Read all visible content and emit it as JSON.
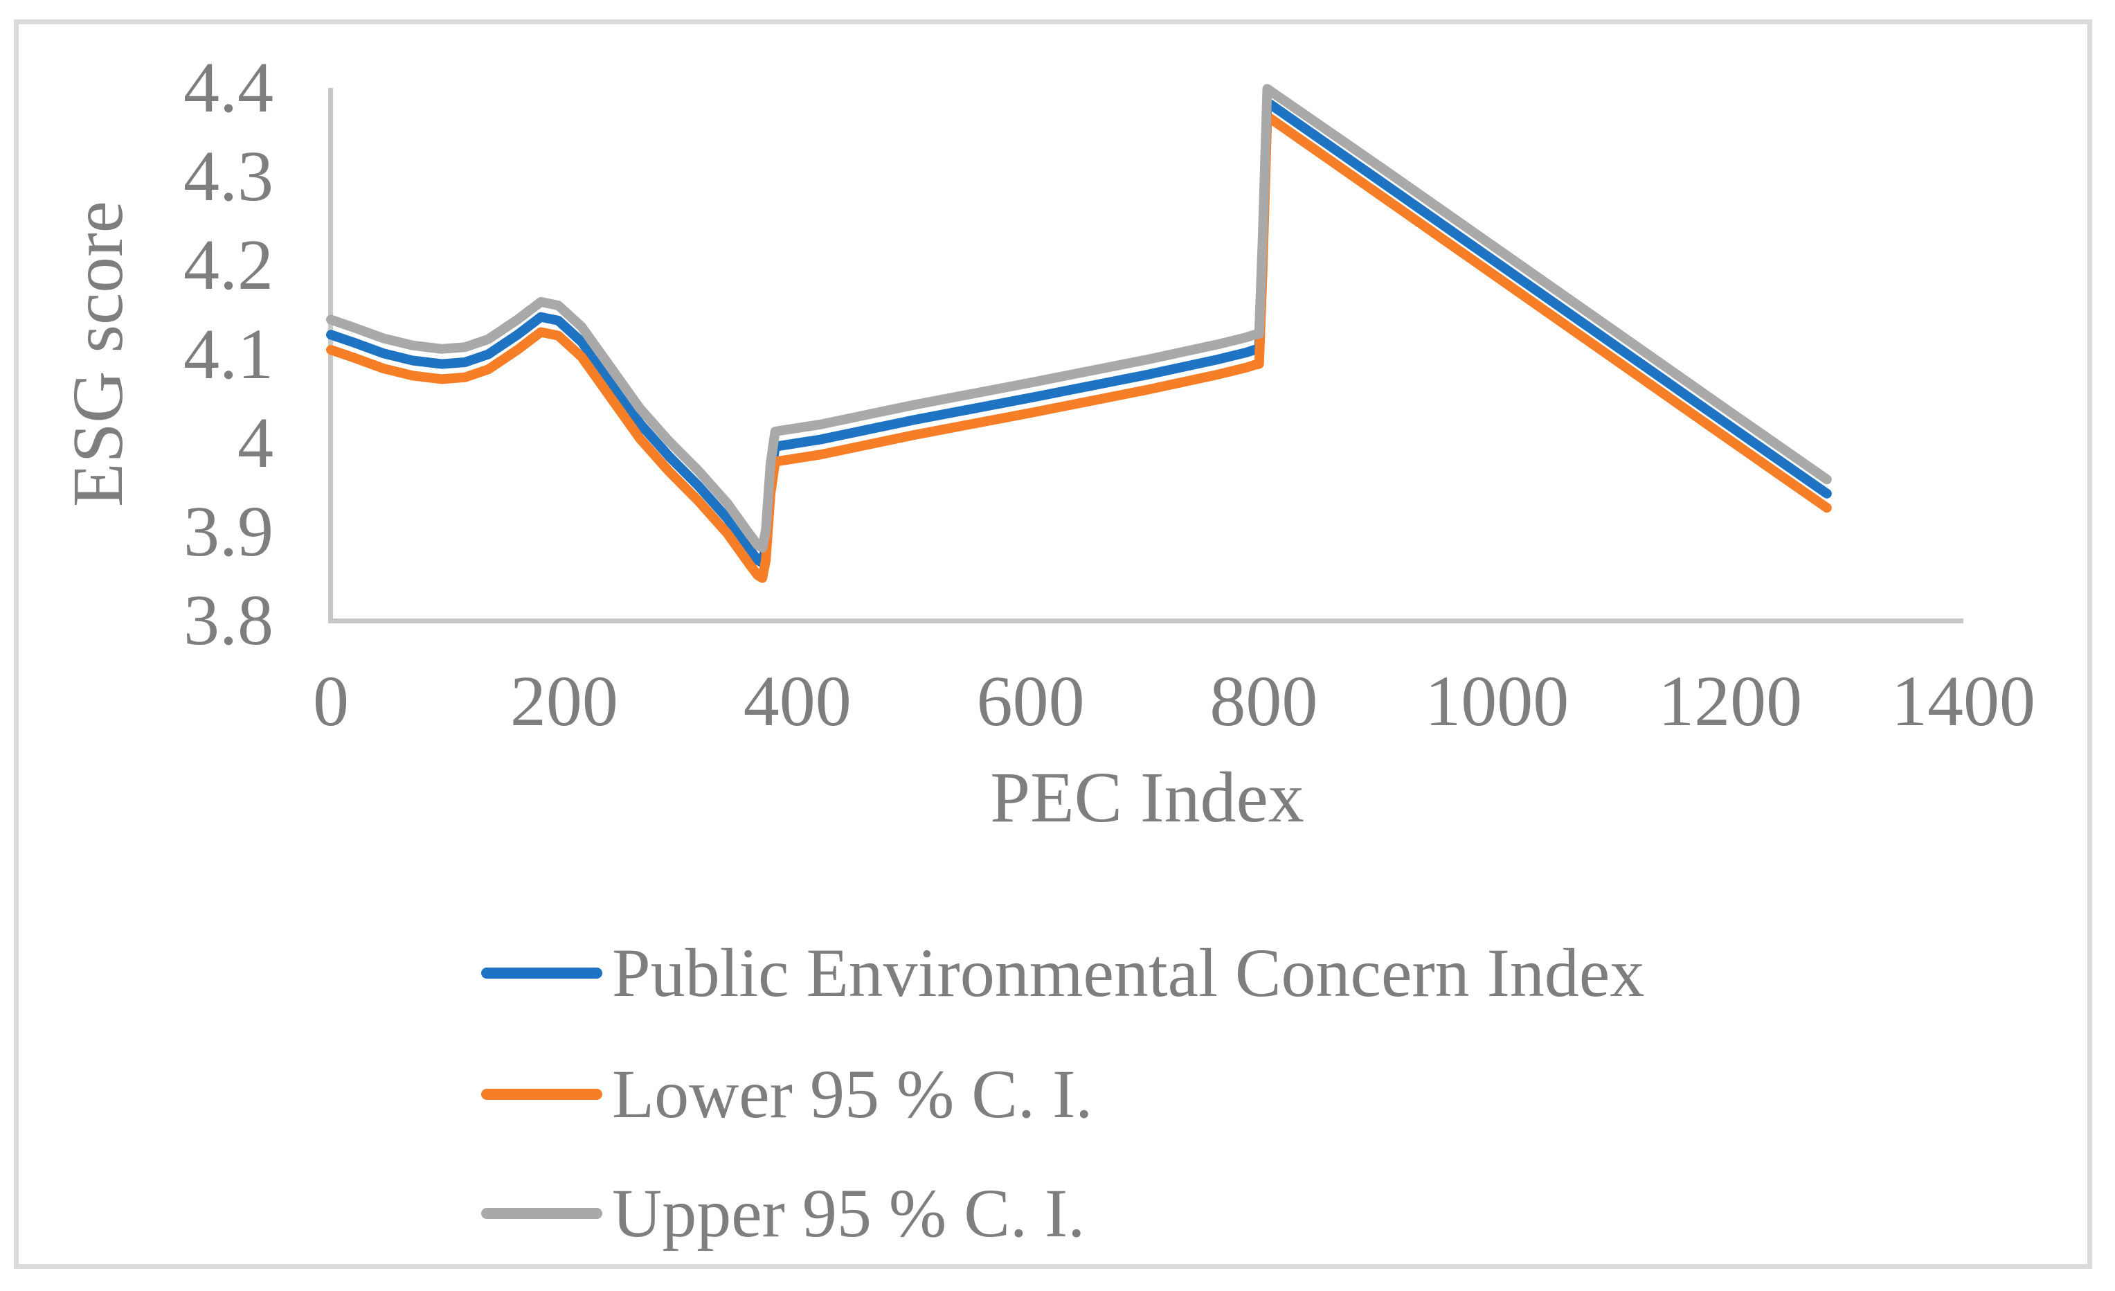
{
  "figure": {
    "background_color": "#ffffff",
    "border_color": "#dbdbdb",
    "axis_line_color": "#c7c7c7",
    "text_color": "#7e7e7e"
  },
  "chart_data": {
    "type": "line",
    "title": "",
    "xlabel": "PEC Index",
    "ylabel": "ESG score",
    "xlim": [
      0,
      1400
    ],
    "ylim": [
      3.8,
      4.4
    ],
    "grid": false,
    "legend_position": "bottom-left",
    "x_ticks": [
      0,
      200,
      400,
      600,
      800,
      1000,
      1200,
      1400
    ],
    "x_tick_labels": [
      "0",
      "200",
      "400",
      "600",
      "800",
      "1000",
      "1200",
      "1400"
    ],
    "y_ticks": [
      4.4,
      4.3,
      4.2,
      4.1,
      4.0,
      3.9,
      3.8
    ],
    "y_tick_labels": [
      "4.4",
      "4.3",
      "4.2",
      "4.1",
      "4",
      "3.9",
      "3.8"
    ],
    "x": [
      0,
      20,
      45,
      70,
      95,
      115,
      135,
      160,
      180,
      195,
      215,
      240,
      265,
      290,
      315,
      340,
      358,
      366,
      370,
      373,
      377,
      381,
      420,
      500,
      600,
      700,
      760,
      785,
      792,
      796,
      799,
      803,
      900,
      1000,
      1100,
      1200,
      1283
    ],
    "series": [
      {
        "name": "Public Environmental Concern Index",
        "color": "#1e73c2",
        "values": [
          4.122,
          4.113,
          4.101,
          4.093,
          4.089,
          4.091,
          4.1,
          4.122,
          4.142,
          4.138,
          4.114,
          4.068,
          4.022,
          3.985,
          3.952,
          3.915,
          3.882,
          3.868,
          3.865,
          3.885,
          3.96,
          3.996,
          4.004,
          4.026,
          4.051,
          4.077,
          4.094,
          4.102,
          4.105,
          4.106,
          4.21,
          4.384,
          4.295,
          4.203,
          4.111,
          4.019,
          3.943
        ]
      },
      {
        "name": "Lower 95 % C. I.",
        "color": "#f57e27",
        "values": [
          4.105,
          4.096,
          4.084,
          4.076,
          4.072,
          4.074,
          4.083,
          4.105,
          4.125,
          4.121,
          4.097,
          4.051,
          4.005,
          3.968,
          3.935,
          3.898,
          3.865,
          3.851,
          3.848,
          3.868,
          3.943,
          3.979,
          3.987,
          4.009,
          4.034,
          4.06,
          4.077,
          4.085,
          4.088,
          4.089,
          4.193,
          4.368,
          4.279,
          4.187,
          4.095,
          4.003,
          3.927
        ]
      },
      {
        "name": "Upper 95 % C. I.",
        "color": "#a9a9a9",
        "values": [
          4.139,
          4.13,
          4.118,
          4.11,
          4.106,
          4.108,
          4.117,
          4.139,
          4.159,
          4.155,
          4.131,
          4.085,
          4.039,
          4.002,
          3.969,
          3.932,
          3.899,
          3.885,
          3.882,
          3.902,
          3.977,
          4.013,
          4.021,
          4.043,
          4.068,
          4.094,
          4.111,
          4.119,
          4.122,
          4.123,
          4.227,
          4.399,
          4.311,
          4.219,
          4.127,
          4.035,
          3.959
        ]
      }
    ]
  },
  "legend": {
    "items": [
      {
        "label": "Public Environmental Concern Index",
        "color": "#1e73c2"
      },
      {
        "label": "Lower 95 % C. I.",
        "color": "#f57e27"
      },
      {
        "label": "Upper 95 % C. I.",
        "color": "#a9a9a9"
      }
    ]
  }
}
